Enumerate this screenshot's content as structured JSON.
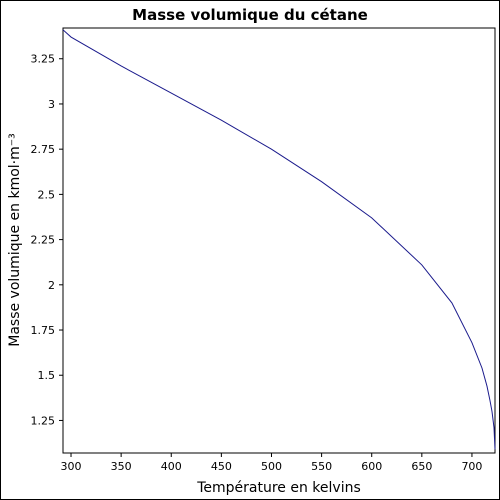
{
  "chart_data": {
    "type": "line",
    "title": "Masse volumique du cétane",
    "xlabel": "Température en kelvins",
    "ylabel": "Masse volumique en kmol·m⁻³",
    "xlim": [
      292,
      723
    ],
    "ylim": [
      1.07,
      3.42
    ],
    "xticks": [
      300,
      350,
      400,
      450,
      500,
      550,
      600,
      650,
      700
    ],
    "yticks": [
      1.25,
      1.5,
      1.75,
      2,
      2.25,
      2.5,
      2.75,
      3,
      3.25
    ],
    "ytick_labels": [
      "1.25",
      "1.5",
      "1.75",
      "2",
      "2.25",
      "2.5",
      "2.75",
      "3",
      "3.25"
    ],
    "grid": false,
    "series": [
      {
        "color": "#1a1a8c",
        "x": [
          292,
          300,
          350,
          400,
          450,
          500,
          550,
          600,
          650,
          680,
          700,
          710,
          715,
          718,
          720,
          722,
          723
        ],
        "y": [
          3.41,
          3.37,
          3.21,
          3.06,
          2.91,
          2.75,
          2.57,
          2.37,
          2.11,
          1.9,
          1.68,
          1.54,
          1.44,
          1.36,
          1.3,
          1.21,
          1.09
        ]
      }
    ]
  }
}
